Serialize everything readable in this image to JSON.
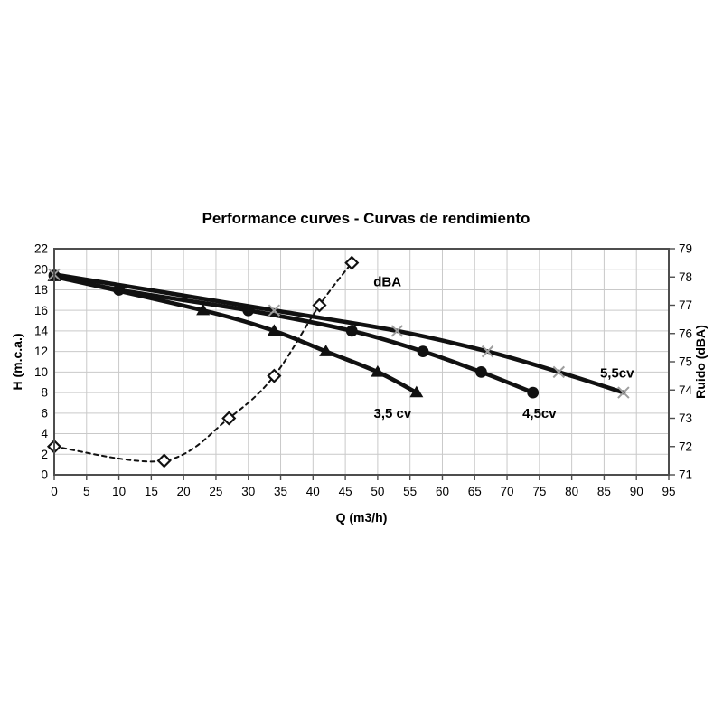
{
  "chart_data": {
    "type": "line",
    "title": "Performance curves - Curvas de rendimiento",
    "xlabel": "Q (m3/h)",
    "ylabel_left": "H (m.c.a.)",
    "ylabel_right": "Ruido (dBA)",
    "grid": true,
    "x_axis": {
      "min": 0,
      "max": 95,
      "tick_labels": [
        "0",
        "5",
        "10",
        "15",
        "20",
        "25",
        "30",
        "35",
        "40",
        "45",
        "50",
        "55",
        "60",
        "65",
        "70",
        "75",
        "80",
        "85",
        "90",
        "95"
      ]
    },
    "y_axis_left": {
      "min": 0,
      "max": 22,
      "tick_labels": [
        "0",
        "2",
        "4",
        "6",
        "8",
        "10",
        "12",
        "14",
        "16",
        "18",
        "20",
        "22"
      ]
    },
    "y_axis_right": {
      "min": 71,
      "max": 79,
      "tick_labels": [
        "71",
        "72",
        "73",
        "74",
        "75",
        "76",
        "77",
        "78",
        "79"
      ]
    },
    "colors": {
      "curve": "#111111",
      "x_marker": "#9e9e9e",
      "grid": "#c9c9c9",
      "axis": "#4d4d4d",
      "background": "#ffffff"
    },
    "series": [
      {
        "name": "3,5 cv",
        "axis": "left",
        "marker": "triangle",
        "line": "solid",
        "x": [
          0,
          23,
          34,
          42,
          50,
          56
        ],
        "y": [
          19.3,
          16,
          14,
          12,
          10,
          8
        ],
        "label": {
          "text": "3,5 cv",
          "q": 52.3,
          "h": 6.0
        }
      },
      {
        "name": "4,5cv",
        "axis": "left",
        "marker": "circle",
        "line": "solid",
        "x": [
          0,
          10,
          30,
          46,
          57,
          66,
          74
        ],
        "y": [
          19.4,
          18,
          16,
          14,
          12,
          10,
          8
        ],
        "label": {
          "text": "4,5cv",
          "q": 75.0,
          "h": 6.0
        }
      },
      {
        "name": "5,5cv",
        "axis": "left",
        "marker": "x",
        "line": "solid",
        "x": [
          0,
          34,
          53,
          67,
          78,
          88
        ],
        "y": [
          19.5,
          16,
          14,
          12,
          10,
          8
        ],
        "label": {
          "text": "5,5cv",
          "q": 87.0,
          "h": 9.9
        }
      },
      {
        "name": "dBA",
        "axis": "right",
        "marker": "diamond",
        "line": "dashed",
        "x": [
          0,
          17,
          27,
          34,
          41,
          46
        ],
        "y": [
          72,
          71.5,
          73,
          74.5,
          77,
          78.5
        ],
        "label": {
          "text": "dBA",
          "q": 51.5,
          "h": 18.8
        }
      }
    ]
  }
}
